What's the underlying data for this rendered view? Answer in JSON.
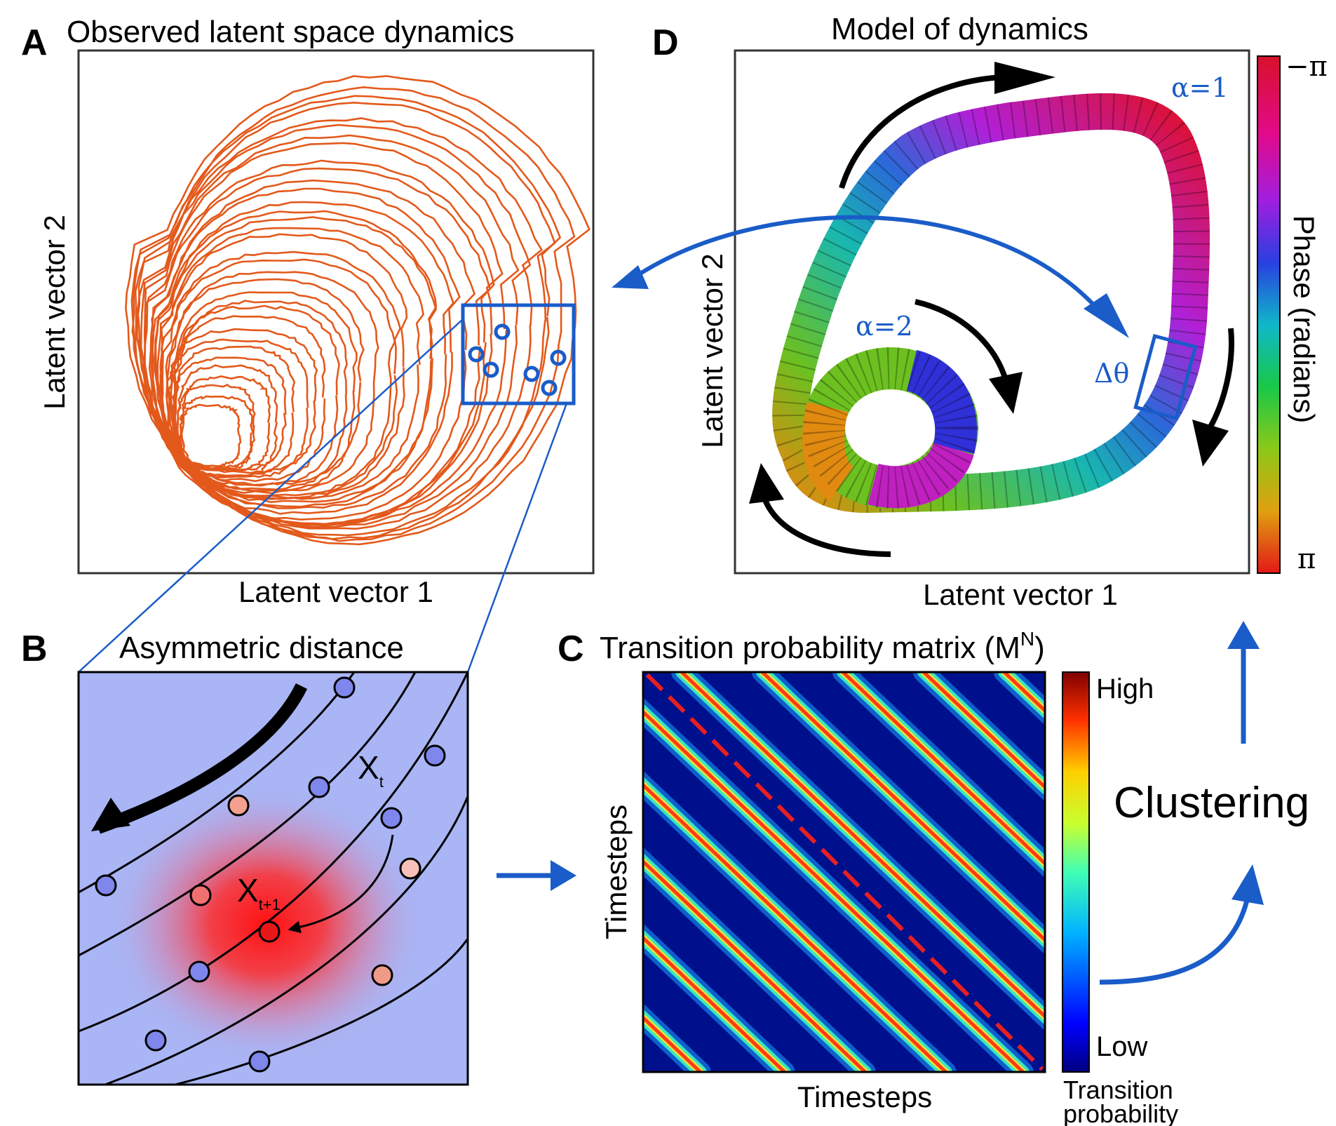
{
  "panel_a": {
    "letter": "A",
    "title": "Observed latent space dynamics",
    "xlabel": "Latent vector 1",
    "ylabel": "Latent vector 2",
    "trajectory_color": "#e3591b"
  },
  "panel_b": {
    "letter": "B",
    "title": "Asymmetric distance",
    "label_xt_main": "X",
    "label_xt_sub": "t",
    "label_xt1_main": "X",
    "label_xt1_sub": "t+1",
    "background_color": "#a9b5f5"
  },
  "panel_c": {
    "letter": "C",
    "title": "Transition probability matrix (M",
    "title_sup": "N",
    "title_end": ")",
    "xlabel": "Timesteps",
    "ylabel": "Timesteps",
    "colorbar_high": "High",
    "colorbar_low": "Low",
    "colorbar_label_1": "Transition",
    "colorbar_label_2": "probability"
  },
  "panel_d": {
    "letter": "D",
    "title": "Model of dynamics",
    "xlabel": "Latent vector 1",
    "ylabel": "Latent vector 2",
    "alpha1": "α=1",
    "alpha2": "α=2",
    "delta_theta": "Δθ",
    "colorbar_label": "Phase (radians)",
    "colorbar_top": "−π",
    "colorbar_bottom": "π"
  },
  "clustering_label": "Clustering",
  "accent_color": "#1a5cc8"
}
